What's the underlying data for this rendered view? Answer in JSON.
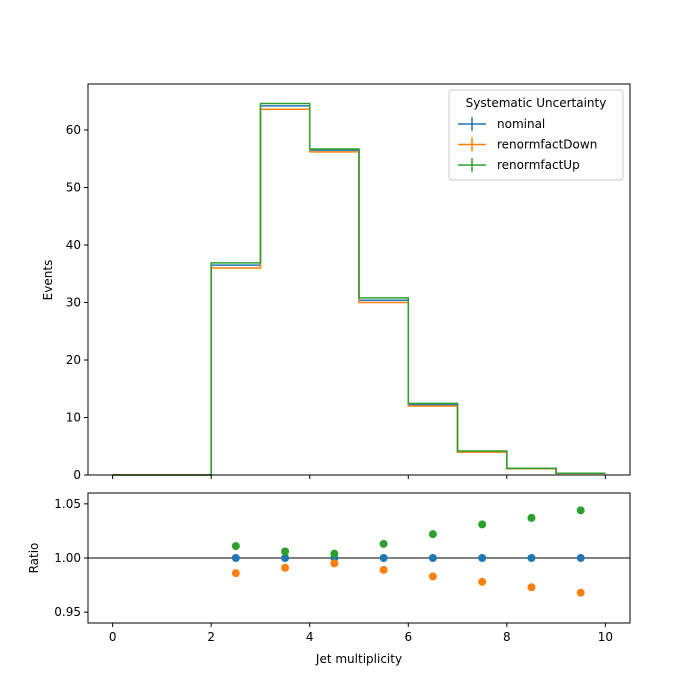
{
  "chart_data": [
    {
      "type": "line",
      "panel": "main",
      "xlabel": "",
      "ylabel": "Events",
      "xlim": [
        -0.5,
        10.5
      ],
      "ylim": [
        0,
        68
      ],
      "y_ticks": [
        0,
        10,
        20,
        30,
        40,
        50,
        60
      ],
      "x_ticks": [
        0,
        2,
        4,
        6,
        8,
        10
      ],
      "grid": false,
      "legend": {
        "title": "Systematic Uncertainty",
        "placement": "top-right"
      },
      "bin_edges": [
        0,
        1,
        2,
        3,
        4,
        5,
        6,
        7,
        8,
        9,
        10
      ],
      "series": [
        {
          "name": "nominal",
          "color": "#1f77b4",
          "values": [
            0,
            0,
            36.5,
            64.2,
            56.5,
            30.4,
            12.2,
            4.05,
            1.12,
            0.3
          ]
        },
        {
          "name": "renormfactDown",
          "color": "#ff7f0e",
          "values": [
            0,
            0,
            36.0,
            63.6,
            56.2,
            30.0,
            12.0,
            3.97,
            1.09,
            0.29
          ]
        },
        {
          "name": "renormfactUp",
          "color": "#2ca02c",
          "values": [
            0,
            0,
            36.9,
            64.6,
            56.7,
            30.8,
            12.45,
            4.18,
            1.16,
            0.31
          ]
        }
      ]
    },
    {
      "type": "scatter",
      "panel": "ratio",
      "xlabel": "Jet multiplicity",
      "ylabel": "Ratio",
      "xlim": [
        -0.5,
        10.5
      ],
      "ylim": [
        0.94,
        1.06
      ],
      "y_ticks": [
        0.95,
        1.0,
        1.05
      ],
      "y_tick_labels": [
        "0.95",
        "1.00",
        "1.05"
      ],
      "x_ticks": [
        0,
        2,
        4,
        6,
        8,
        10
      ],
      "reference_line": 1.0,
      "grid": false,
      "x": [
        2.5,
        3.5,
        4.5,
        5.5,
        6.5,
        7.5,
        8.5,
        9.5
      ],
      "series": [
        {
          "name": "nominal",
          "color": "#1f77b4",
          "values": [
            1.0,
            1.0,
            1.0,
            1.0,
            1.0,
            1.0,
            1.0,
            1.0
          ]
        },
        {
          "name": "renormfactDown",
          "color": "#ff7f0e",
          "values": [
            0.986,
            0.991,
            0.995,
            0.989,
            0.983,
            0.978,
            0.973,
            0.968
          ]
        },
        {
          "name": "renormfactUp",
          "color": "#2ca02c",
          "values": [
            1.011,
            1.006,
            1.004,
            1.013,
            1.022,
            1.031,
            1.037,
            1.044
          ]
        }
      ]
    }
  ]
}
